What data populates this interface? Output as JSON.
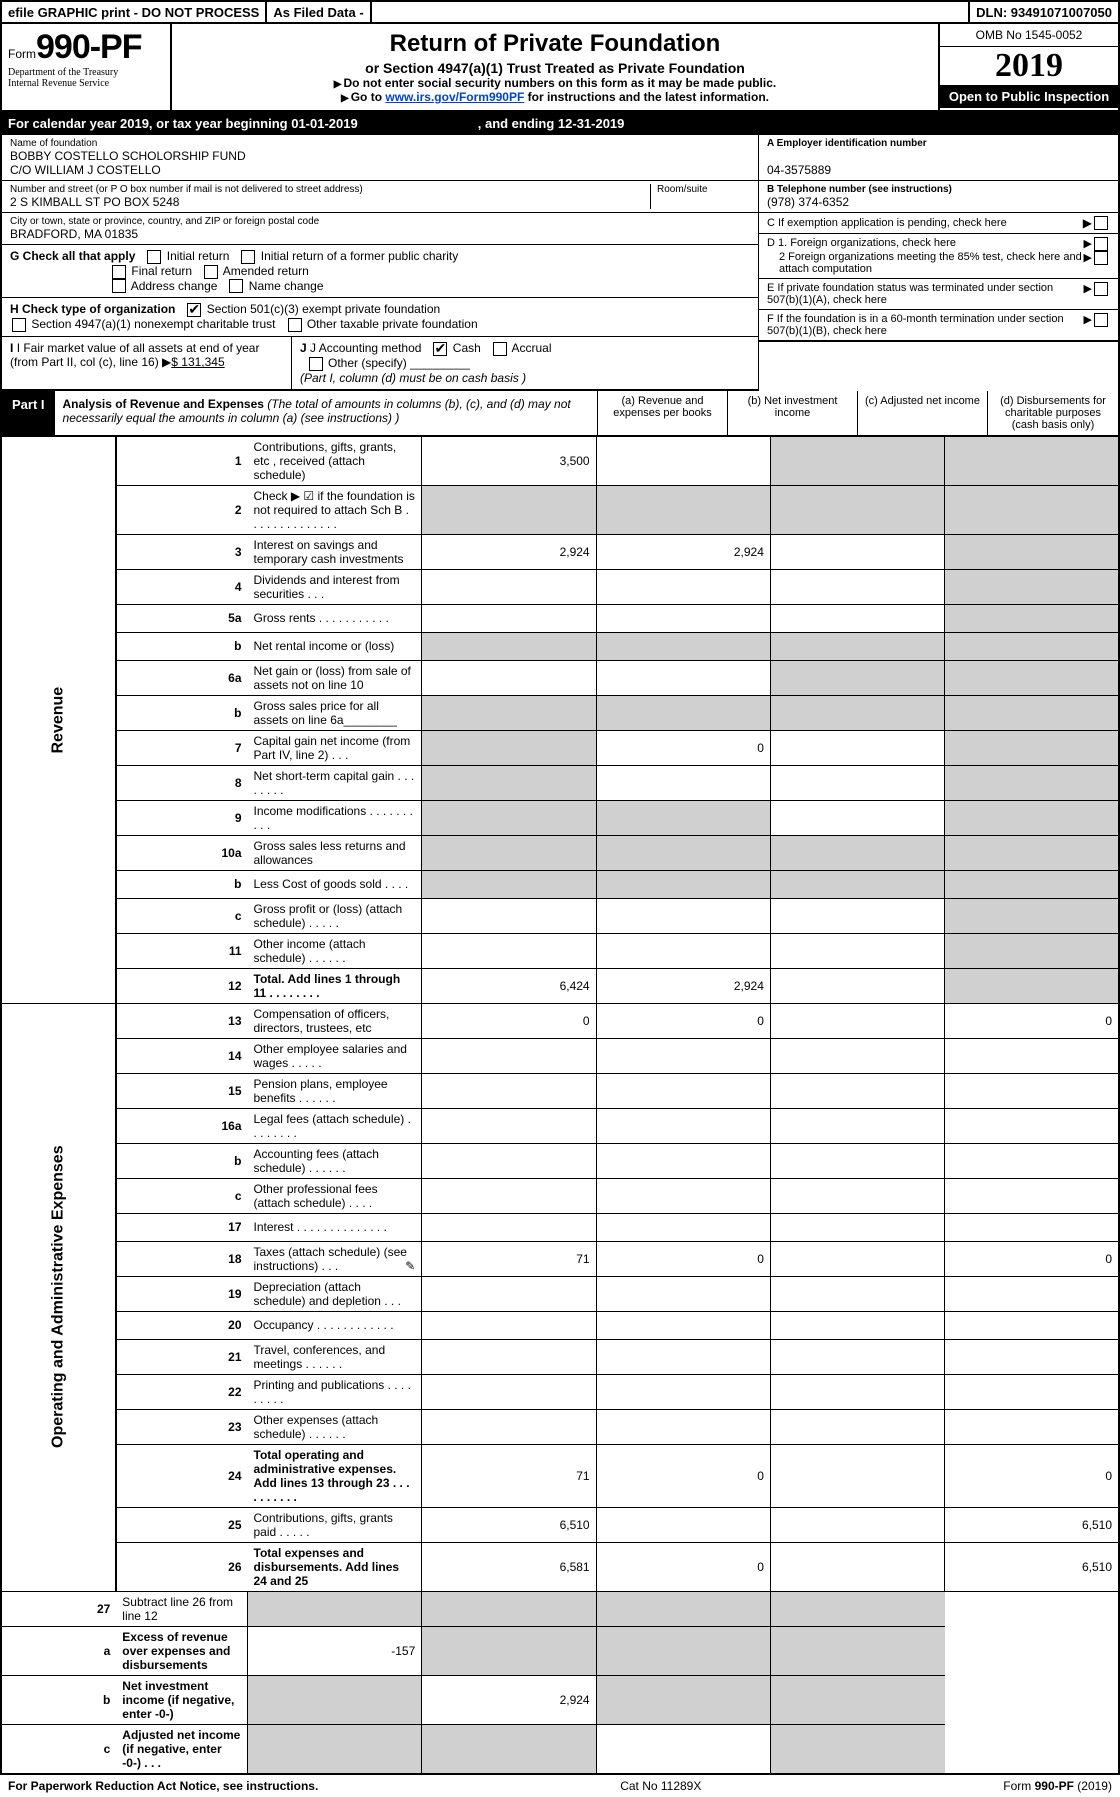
{
  "topbar": {
    "efile": "efile GRAPHIC print - DO NOT PROCESS",
    "asfiled": "As Filed Data -",
    "dln": "DLN: 93491071007050"
  },
  "header": {
    "form_prefix": "Form",
    "form_no": "990-PF",
    "dept1": "Department of the Treasury",
    "dept2": "Internal Revenue Service",
    "title": "Return of Private Foundation",
    "subtitle": "or Section 4947(a)(1) Trust Treated as Private Foundation",
    "note1": "Do not enter social security numbers on this form as it may be made public.",
    "note2_a": "Go to ",
    "note2_link": "www.irs.gov/Form990PF",
    "note2_b": " for instructions and the latest information.",
    "omb": "OMB No 1545-0052",
    "year": "2019",
    "open": "Open to Public Inspection"
  },
  "cal": {
    "a": "For calendar year 2019, or tax year beginning 01-01-2019",
    "b": ", and ending 12-31-2019"
  },
  "org": {
    "name_lbl": "Name of foundation",
    "name1": "BOBBY COSTELLO SCHOLORSHIP FUND",
    "name2": "C/O WILLIAM J COSTELLO",
    "addr_lbl": "Number and street (or P O box number if mail is not delivered to street address)",
    "room_lbl": "Room/suite",
    "addr": "2 S KIMBALL ST PO BOX 5248",
    "city_lbl": "City or town, state or province, country, and ZIP or foreign postal code",
    "city": "BRADFORD, MA  01835",
    "a_lbl": "A Employer identification number",
    "ein": "04-3575889",
    "b_lbl": "B Telephone number (see instructions)",
    "phone": "(978) 374-6352",
    "c_lbl": "C If exemption application is pending, check here",
    "d1": "D 1. Foreign organizations, check here",
    "d2": "2 Foreign organizations meeting the 85% test, check here and attach computation",
    "e": "E  If private foundation status was terminated under section 507(b)(1)(A), check here",
    "f": "F  If the foundation is in a 60-month termination under section 507(b)(1)(B), check here"
  },
  "g": {
    "lbl": "G Check all that apply",
    "o1": "Initial return",
    "o2": "Initial return of a former public charity",
    "o3": "Final return",
    "o4": "Amended return",
    "o5": "Address change",
    "o6": "Name change"
  },
  "h": {
    "lbl": "H Check type of organization",
    "o1": "Section 501(c)(3) exempt private foundation",
    "o2": "Section 4947(a)(1) nonexempt charitable trust",
    "o3": "Other taxable private foundation"
  },
  "i": {
    "lbl": "I Fair market value of all assets at end of year (from Part II, col  (c), line 16)",
    "val": "$  131,345"
  },
  "j": {
    "lbl": "J Accounting method",
    "o1": "Cash",
    "o2": "Accrual",
    "o3": "Other (specify)",
    "note": "(Part I, column (d) must be on cash basis )"
  },
  "part1": {
    "lbl": "Part I",
    "title": "Analysis of Revenue and Expenses",
    "desc": " (The total of amounts in columns (b), (c), and (d) may not necessarily equal the amounts in column (a) (see instructions) )",
    "col_a": "(a)   Revenue and expenses per books",
    "col_b": "(b)  Net investment income",
    "col_c": "(c)  Adjusted net income",
    "col_d": "(d)  Disbursements for charitable purposes (cash basis only)"
  },
  "sides": {
    "rev": "Revenue",
    "exp": "Operating and Administrative Expenses"
  },
  "rows": [
    {
      "n": "1",
      "d": "Contributions, gifts, grants, etc , received (attach schedule)",
      "a": "3,500",
      "b": "",
      "c": "",
      "dd": ""
    },
    {
      "n": "2",
      "d": "Check ▶ ☑ if the foundation is not required to attach Sch  B  .  .  .  .  .  .  .  .  .  .  .  .  .  .",
      "a": "",
      "b": "",
      "c": "",
      "dd": ""
    },
    {
      "n": "3",
      "d": "Interest on savings and temporary cash investments",
      "a": "2,924",
      "b": "2,924",
      "c": "",
      "dd": ""
    },
    {
      "n": "4",
      "d": "Dividends and interest from securities   .  .  .",
      "a": "",
      "b": "",
      "c": "",
      "dd": ""
    },
    {
      "n": "5a",
      "d": "Gross rents   .  .  .  .  .  .  .  .  .  .  .",
      "a": "",
      "b": "",
      "c": "",
      "dd": ""
    },
    {
      "n": "b",
      "d": "Net rental income or (loss)  ",
      "a": "",
      "b": "",
      "c": "",
      "dd": ""
    },
    {
      "n": "6a",
      "d": "Net gain or (loss) from sale of assets not on line 10",
      "a": "",
      "b": "",
      "c": "",
      "dd": ""
    },
    {
      "n": "b",
      "d": "Gross sales price for all assets on line 6a________",
      "a": "",
      "b": "",
      "c": "",
      "dd": ""
    },
    {
      "n": "7",
      "d": "Capital gain net income (from Part IV, line 2)  .  .  .",
      "a": "",
      "b": "0",
      "c": "",
      "dd": ""
    },
    {
      "n": "8",
      "d": "Net short-term capital gain  .  .  .  .  .  .  .  .",
      "a": "",
      "b": "",
      "c": "",
      "dd": ""
    },
    {
      "n": "9",
      "d": "Income modifications  .  .  .  .  .  .  .  .  .  .",
      "a": "",
      "b": "",
      "c": "",
      "dd": ""
    },
    {
      "n": "10a",
      "d": "Gross sales less returns and allowances  ",
      "a": "",
      "b": "",
      "c": "",
      "dd": ""
    },
    {
      "n": "b",
      "d": "Less   Cost of goods sold   .  .  .  .",
      "a": "",
      "b": "",
      "c": "",
      "dd": ""
    },
    {
      "n": "c",
      "d": "Gross profit or (loss) (attach schedule)   .  .  .  .  .",
      "a": "",
      "b": "",
      "c": "",
      "dd": ""
    },
    {
      "n": "11",
      "d": "Other income (attach schedule)   .  .  .  .  .  .",
      "a": "",
      "b": "",
      "c": "",
      "dd": ""
    },
    {
      "n": "12",
      "d": "Total. Add lines 1 through 11   .  .  .  .  .  .  .  .",
      "a": "6,424",
      "b": "2,924",
      "c": "",
      "dd": "",
      "bold": true
    }
  ],
  "exp_rows": [
    {
      "n": "13",
      "d": "Compensation of officers, directors, trustees, etc",
      "a": "0",
      "b": "0",
      "c": "",
      "dd": "0"
    },
    {
      "n": "14",
      "d": "Other employee salaries and wages   .  .  .  .  .",
      "a": "",
      "b": "",
      "c": "",
      "dd": ""
    },
    {
      "n": "15",
      "d": "Pension plans, employee benefits  .  .  .  .  .  .",
      "a": "",
      "b": "",
      "c": "",
      "dd": ""
    },
    {
      "n": "16a",
      "d": "Legal fees (attach schedule)  .  .  .  .  .  .  .  .",
      "a": "",
      "b": "",
      "c": "",
      "dd": ""
    },
    {
      "n": "b",
      "d": "Accounting fees (attach schedule)  .  .  .  .  .  .",
      "a": "",
      "b": "",
      "c": "",
      "dd": ""
    },
    {
      "n": "c",
      "d": "Other professional fees (attach schedule)   .  .  .  .",
      "a": "",
      "b": "",
      "c": "",
      "dd": ""
    },
    {
      "n": "17",
      "d": "Interest  .  .  .  .  .  .  .  .  .  .  .  .  .  .",
      "a": "",
      "b": "",
      "c": "",
      "dd": ""
    },
    {
      "n": "18",
      "d": "Taxes (attach schedule) (see instructions)    .  .  .",
      "a": "71",
      "b": "0",
      "c": "",
      "dd": "0",
      "icon": true
    },
    {
      "n": "19",
      "d": "Depreciation (attach schedule) and depletion   .  .  .",
      "a": "",
      "b": "",
      "c": "",
      "dd": ""
    },
    {
      "n": "20",
      "d": "Occupancy   .  .  .  .  .  .  .  .  .  .  .  .",
      "a": "",
      "b": "",
      "c": "",
      "dd": ""
    },
    {
      "n": "21",
      "d": "Travel, conferences, and meetings  .  .  .  .  .  .",
      "a": "",
      "b": "",
      "c": "",
      "dd": ""
    },
    {
      "n": "22",
      "d": "Printing and publications  .  .  .  .  .  .  .  .  .",
      "a": "",
      "b": "",
      "c": "",
      "dd": ""
    },
    {
      "n": "23",
      "d": "Other expenses (attach schedule)  .  .  .  .  .  .",
      "a": "",
      "b": "",
      "c": "",
      "dd": ""
    },
    {
      "n": "24",
      "d": "Total operating and administrative expenses. Add lines 13 through 23  .  .  .  .  .  .  .  .  .  .",
      "a": "71",
      "b": "0",
      "c": "",
      "dd": "0",
      "bold": true
    },
    {
      "n": "25",
      "d": "Contributions, gifts, grants paid   .  .  .  .  .",
      "a": "6,510",
      "b": "",
      "c": "",
      "dd": "6,510"
    },
    {
      "n": "26",
      "d": "Total expenses and disbursements. Add lines 24 and 25",
      "a": "6,581",
      "b": "0",
      "c": "",
      "dd": "6,510",
      "bold": true
    }
  ],
  "sum_rows": [
    {
      "n": "27",
      "d": "Subtract line 26 from line 12",
      "a": "",
      "b": "",
      "c": "",
      "dd": ""
    },
    {
      "n": "a",
      "d": "Excess of revenue over expenses and disbursements",
      "a": "-157",
      "b": "",
      "c": "",
      "dd": "",
      "bold": true
    },
    {
      "n": "b",
      "d": "Net investment income (if negative, enter -0-)",
      "a": "",
      "b": "2,924",
      "c": "",
      "dd": "",
      "bold": true
    },
    {
      "n": "c",
      "d": "Adjusted net income (if negative, enter -0-)  .  .  .",
      "a": "",
      "b": "",
      "c": "",
      "dd": "",
      "bold": true
    }
  ],
  "footer": {
    "l": "For Paperwork Reduction Act Notice, see instructions.",
    "m": "Cat  No  11289X",
    "r": "Form 990-PF (2019)"
  }
}
